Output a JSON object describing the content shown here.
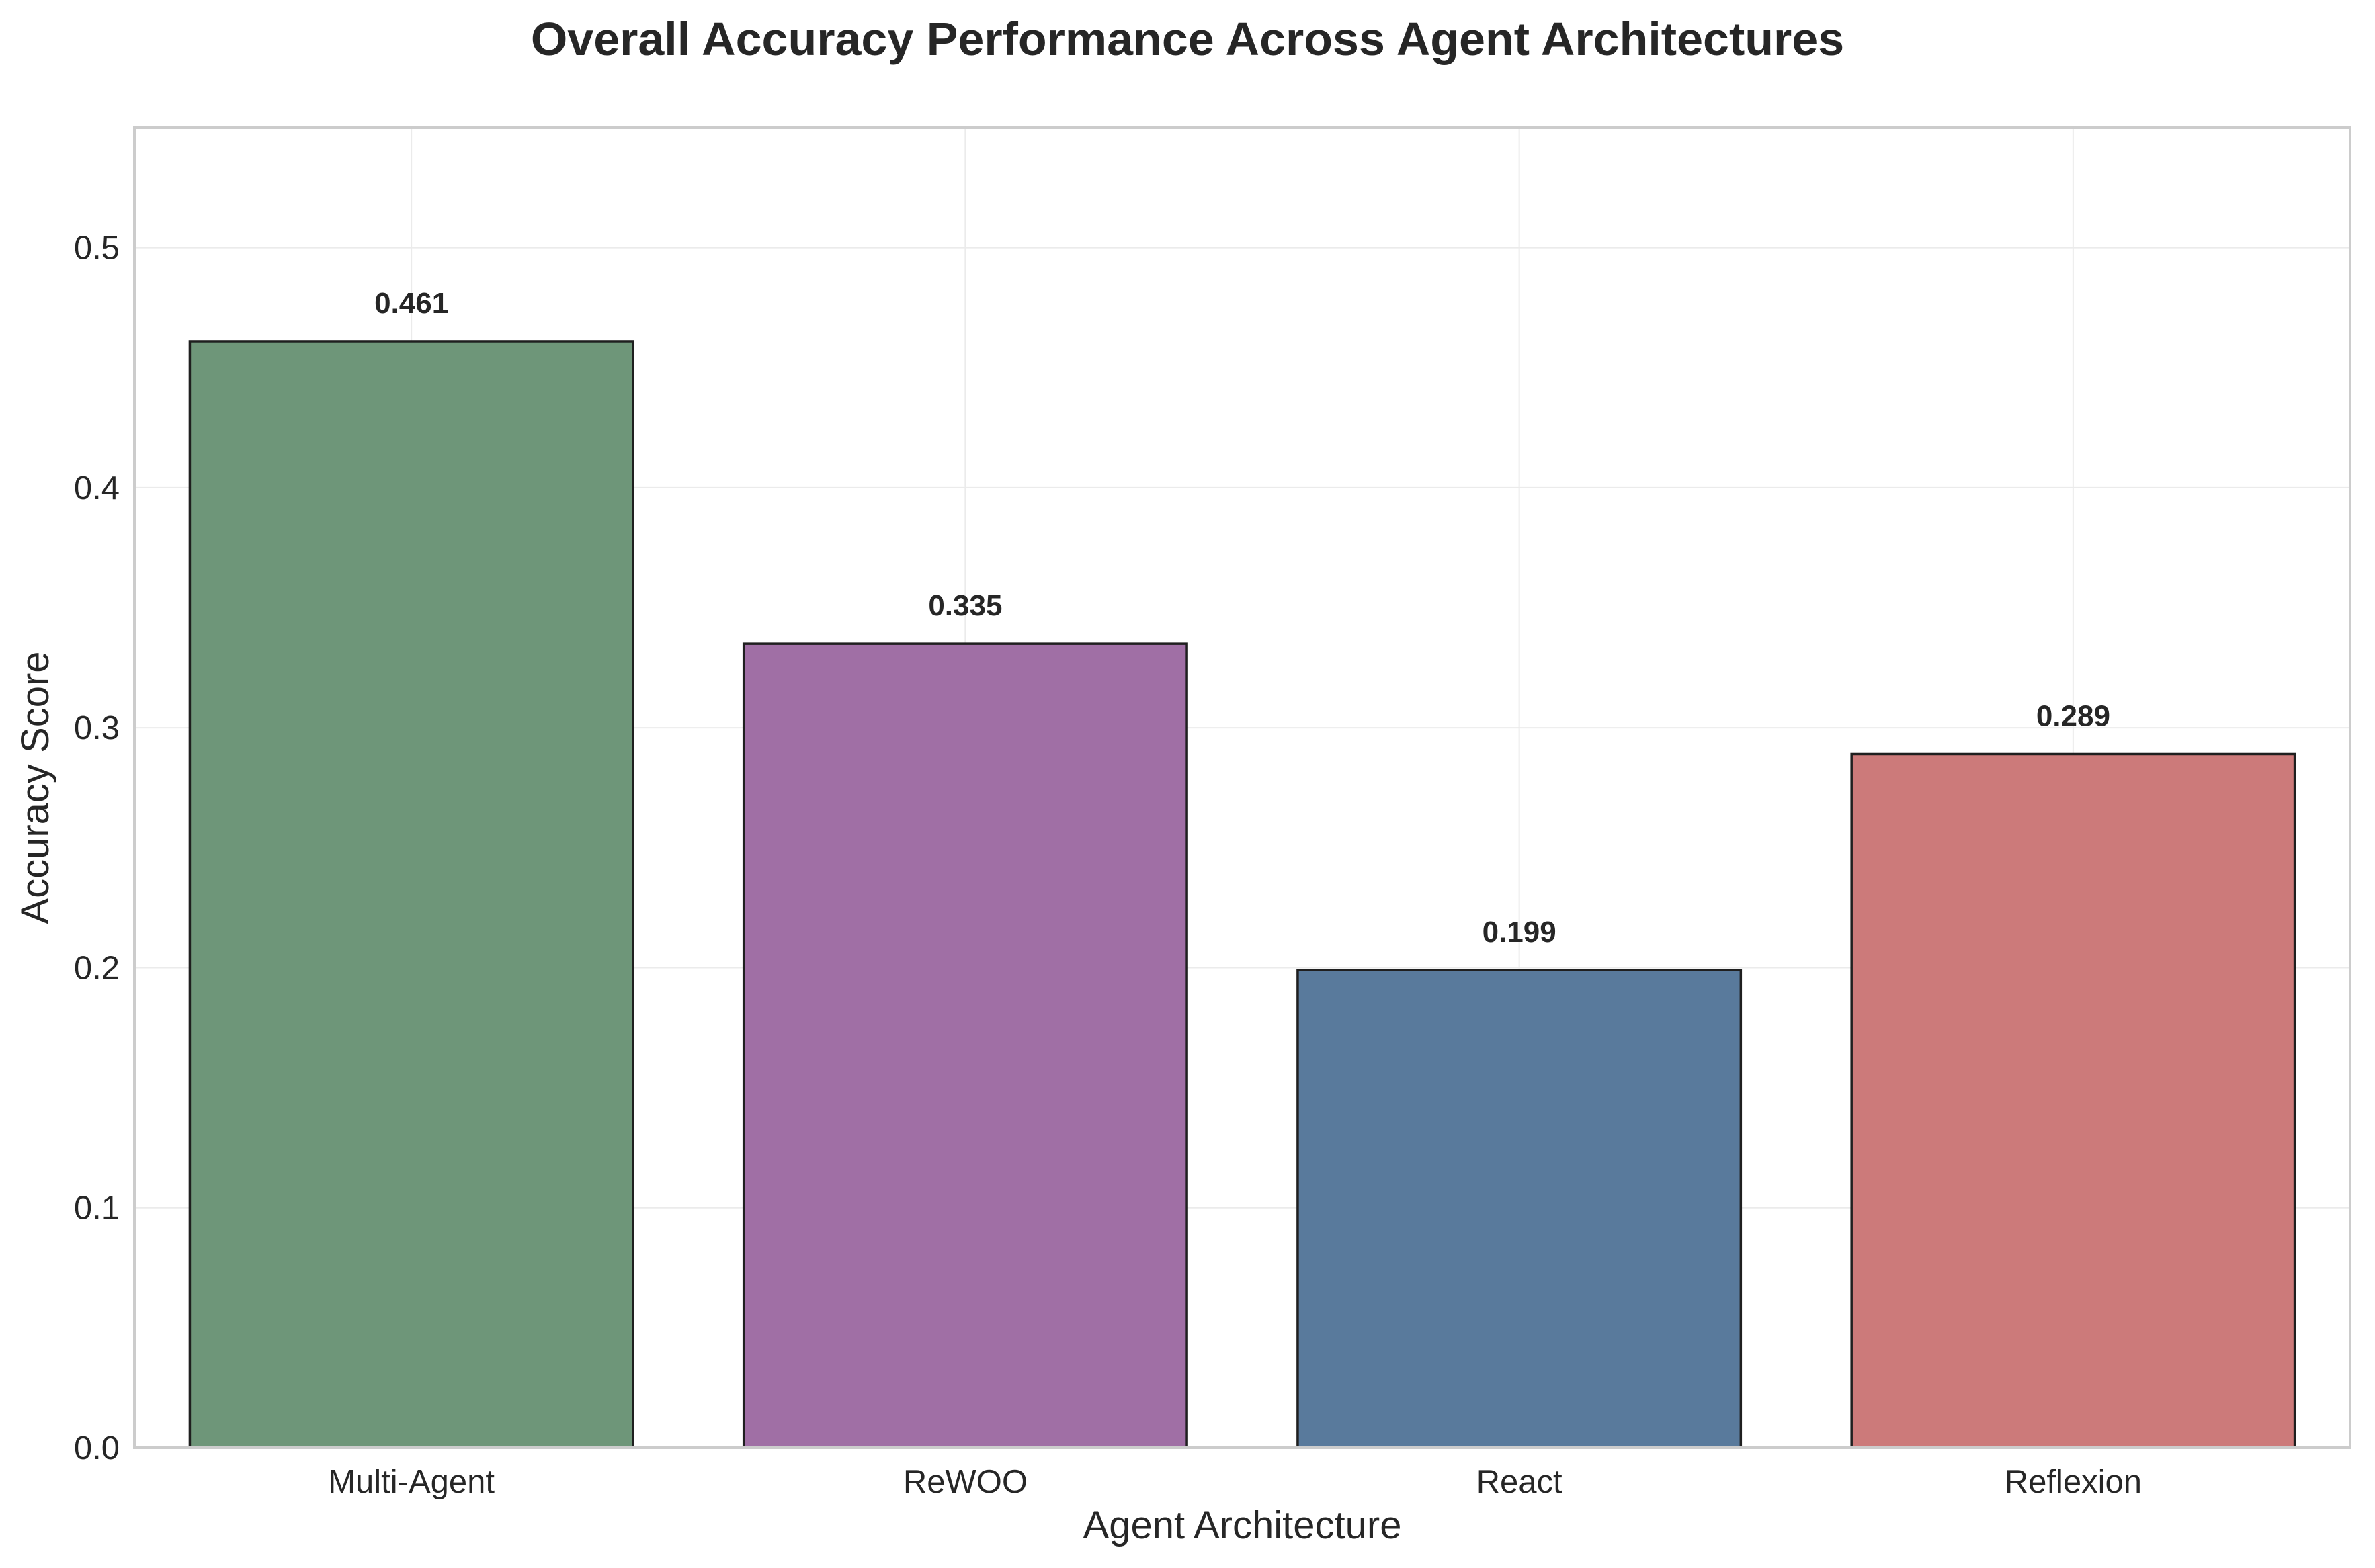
{
  "chart_data": {
    "type": "bar",
    "title": "Overall Accuracy Performance Across Agent Architectures",
    "xlabel": "Agent Architecture",
    "ylabel": "Accuracy Score",
    "categories": [
      "Multi-Agent",
      "ReWOO",
      "React",
      "Reflexion"
    ],
    "values": [
      0.461,
      0.335,
      0.199,
      0.289
    ],
    "value_labels": [
      "0.461",
      "0.335",
      "0.199",
      "0.289"
    ],
    "colors": [
      "#6e9679",
      "#a06fa5",
      "#597a9c",
      "#cc7a7a"
    ],
    "ylim": [
      0,
      0.55
    ],
    "yticks": [
      0.0,
      0.1,
      0.2,
      0.3,
      0.4,
      0.5
    ],
    "ytick_labels": [
      "0.0",
      "0.1",
      "0.2",
      "0.3",
      "0.4",
      "0.5"
    ],
    "grid": true,
    "legend": "none"
  }
}
